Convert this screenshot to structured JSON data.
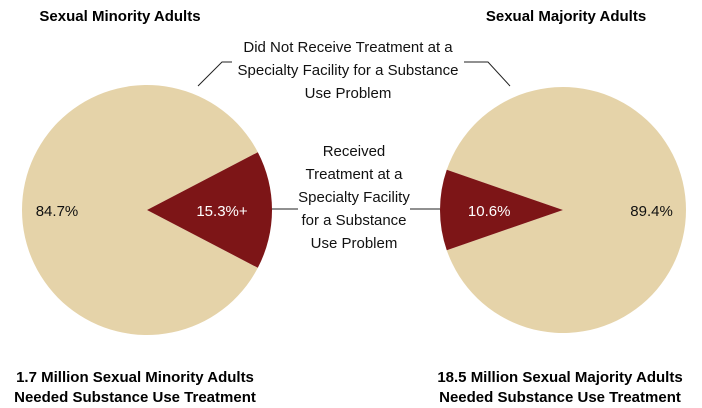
{
  "categories": [
    "Did Not Receive Treatment at a Specialty Facility for a Substance Use Problem",
    "Received Treatment at a Specialty Facility for a Substance Use Problem"
  ],
  "chart_data": [
    {
      "type": "pie",
      "title": "Sexual Minority Adults",
      "values": [
        84.7,
        15.3
      ],
      "value_labels": [
        "84.7%",
        "15.3%+"
      ],
      "colors": [
        "#e5d3a9",
        "#7d1517"
      ],
      "footnote": "1.7 Million Sexual Minority Adults Needed Substance Use Treatment"
    },
    {
      "type": "pie",
      "title": "Sexual Majority Adults",
      "values": [
        89.4,
        10.6
      ],
      "value_labels": [
        "89.4%",
        "10.6%"
      ],
      "colors": [
        "#e5d3a9",
        "#7d1517"
      ],
      "footnote": "18.5 Million Sexual Majority Adults Needed Substance Use Treatment"
    }
  ]
}
